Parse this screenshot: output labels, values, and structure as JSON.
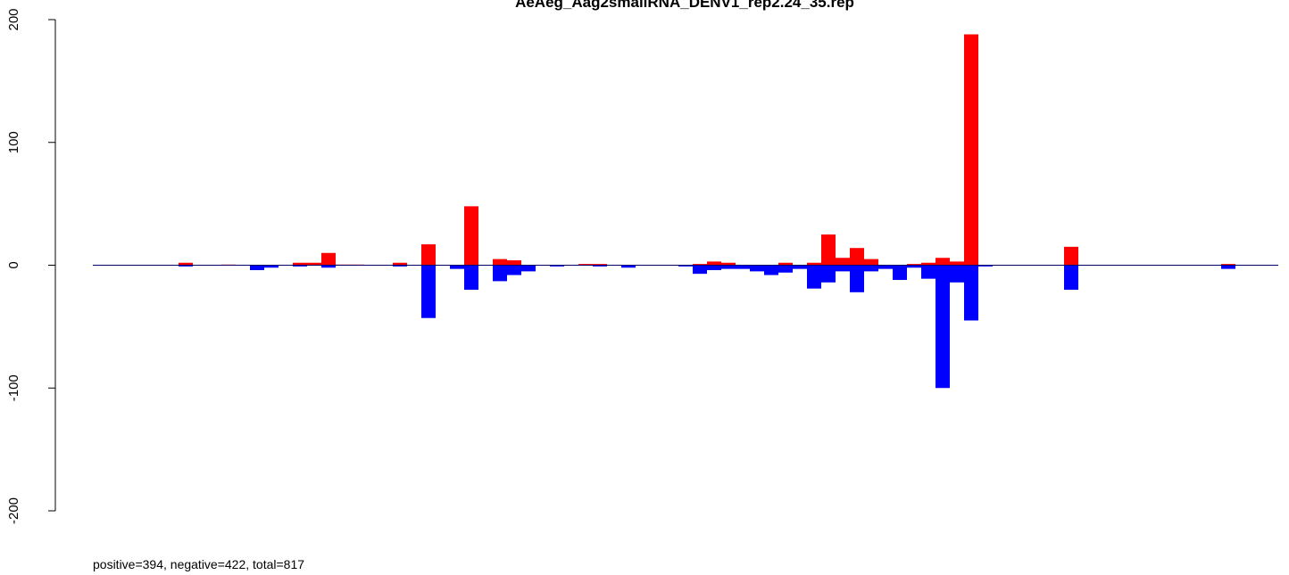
{
  "chart_data": {
    "type": "bar",
    "title": "AeAeg_Aag2smallRNA_DENV1_rep2.24_35.rep",
    "footer": "positive=394, negative=422, total=817",
    "ylim": [
      -200,
      200
    ],
    "yticks": [
      -200,
      -100,
      0,
      100,
      200
    ],
    "series": [
      {
        "color": "#ff0000",
        "values": [
          0,
          0,
          0,
          0,
          0,
          0,
          2,
          0,
          0,
          0.5,
          0,
          0,
          0,
          0,
          2,
          2,
          10,
          0.5,
          0.5,
          0,
          0,
          2,
          0,
          17,
          0,
          0,
          48,
          0,
          5,
          4,
          0,
          0,
          0,
          0,
          1,
          1,
          0,
          0,
          0,
          0,
          0,
          0,
          1,
          3,
          2,
          0,
          0,
          0,
          2,
          0,
          2,
          25,
          6,
          14,
          5,
          0,
          0,
          1,
          2,
          6,
          3,
          188,
          0,
          0,
          0,
          0,
          0,
          0,
          15,
          0,
          0,
          0,
          0,
          0,
          0,
          0,
          0,
          0,
          0,
          1,
          0,
          0,
          0
        ]
      },
      {
        "color": "#0000ff",
        "values": [
          0,
          0,
          0,
          0,
          0,
          0,
          -1,
          0,
          0,
          0,
          0,
          -4,
          -2,
          0,
          -1,
          0,
          -2,
          0,
          0,
          0,
          0,
          -1,
          0,
          -43,
          0,
          -3,
          -20,
          0,
          -13,
          -8,
          -5,
          0,
          -1,
          0,
          0,
          -1,
          0,
          -2,
          0,
          0,
          0,
          -1,
          -7,
          -4,
          -3,
          -3,
          -5,
          -8,
          -6,
          -3,
          -19,
          -14,
          -5,
          -22,
          -5,
          -3,
          -12,
          -2,
          -11,
          -100,
          -14,
          -45,
          -1,
          0,
          0,
          0,
          0,
          0,
          -20,
          0,
          0,
          0,
          0,
          0,
          0,
          0,
          0,
          0,
          0,
          -3,
          0,
          0,
          0
        ]
      }
    ]
  }
}
